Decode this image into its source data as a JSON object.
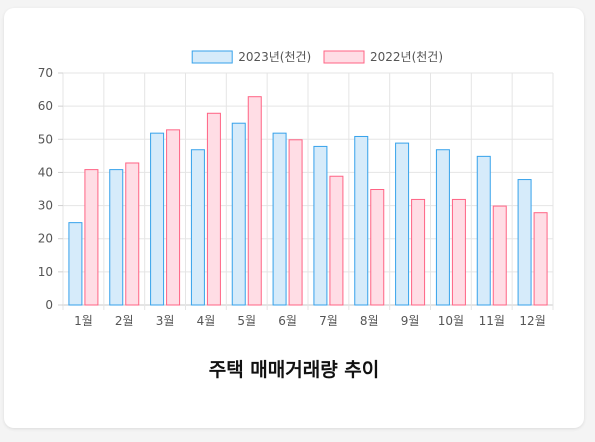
{
  "chart_data": {
    "type": "bar",
    "title": "주택 매매거래량 추이",
    "categories": [
      "1월",
      "2월",
      "3월",
      "4월",
      "5월",
      "6월",
      "7월",
      "8월",
      "9월",
      "10월",
      "11월",
      "12월"
    ],
    "series": [
      {
        "name": "2023년(천건)",
        "values": [
          25,
          41,
          52,
          47,
          55,
          52,
          48,
          51,
          49,
          47,
          45,
          38
        ],
        "color": "#36a2eb",
        "fill": "#d6ebfa"
      },
      {
        "name": "2022년(천건)",
        "values": [
          41,
          43,
          53,
          58,
          63,
          50,
          39,
          35,
          32,
          32,
          30,
          28
        ],
        "color": "#ff6384",
        "fill": "#ffdde5"
      }
    ],
    "ylim": [
      0,
      70
    ],
    "yticks": [
      0,
      10,
      20,
      30,
      40,
      50,
      60,
      70
    ],
    "grid": true,
    "legend": "top"
  }
}
